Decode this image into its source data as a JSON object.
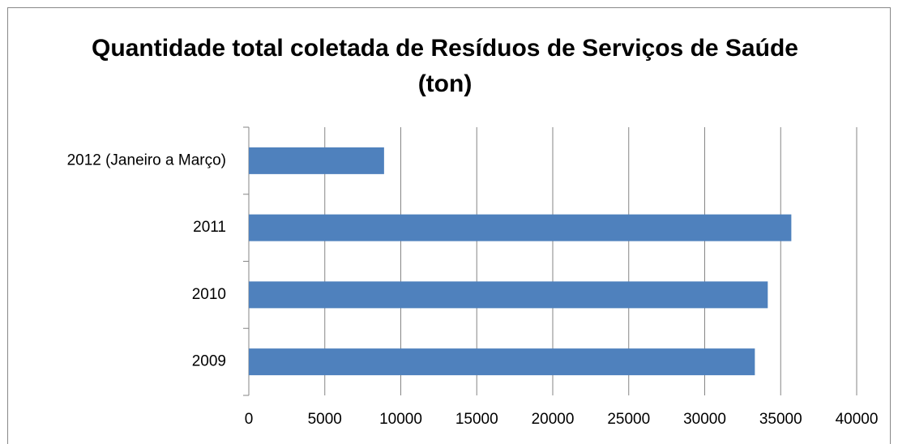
{
  "chart_data": {
    "type": "bar",
    "orientation": "horizontal",
    "title": "Quantidade total coletada de Resíduos de Serviços de Saúde (ton)",
    "categories": [
      "2009",
      "2010",
      "2011",
      "2012  (Janeiro a Março)"
    ],
    "values": [
      33300,
      34150,
      35700,
      8900
    ],
    "color": "#4f81bd",
    "xlim": [
      0,
      40000
    ],
    "xticks": [
      0,
      5000,
      10000,
      15000,
      20000,
      25000,
      30000,
      35000,
      40000
    ],
    "grid": true
  }
}
